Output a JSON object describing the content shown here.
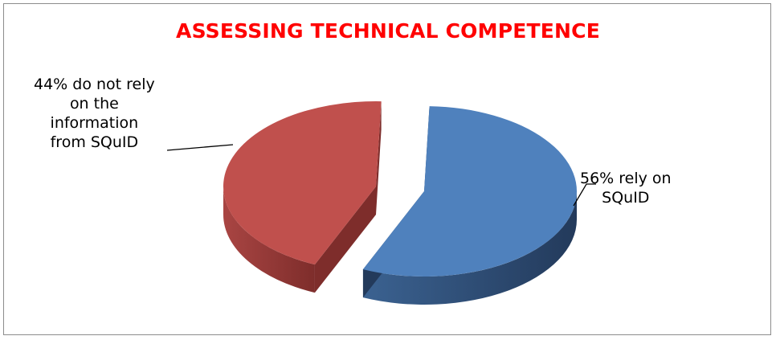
{
  "chart_data": {
    "type": "pie",
    "title": "ASSESSING TECHNICAL COMPETENCE",
    "slices": [
      {
        "label": "rely on SQuID",
        "value": 56,
        "color": "#4f81bd",
        "callout_lines": [
          "56% rely on",
          "SQuID"
        ]
      },
      {
        "label": "do not rely on the information from SQuID",
        "value": 44,
        "color": "#c0504d",
        "callout_lines": [
          "44% do not rely",
          "on the",
          "information",
          "from SQuID"
        ]
      }
    ],
    "legend": "none",
    "style": "3d-exploded"
  },
  "colors": {
    "title": "#ff0000",
    "blue_top": "#4f81bd",
    "blue_side_dark": "#233a5b",
    "blue_side_light": "#3b6291",
    "red_top": "#c0504d",
    "red_side_dark": "#7e2d2b",
    "red_side_light": "#a94543"
  }
}
